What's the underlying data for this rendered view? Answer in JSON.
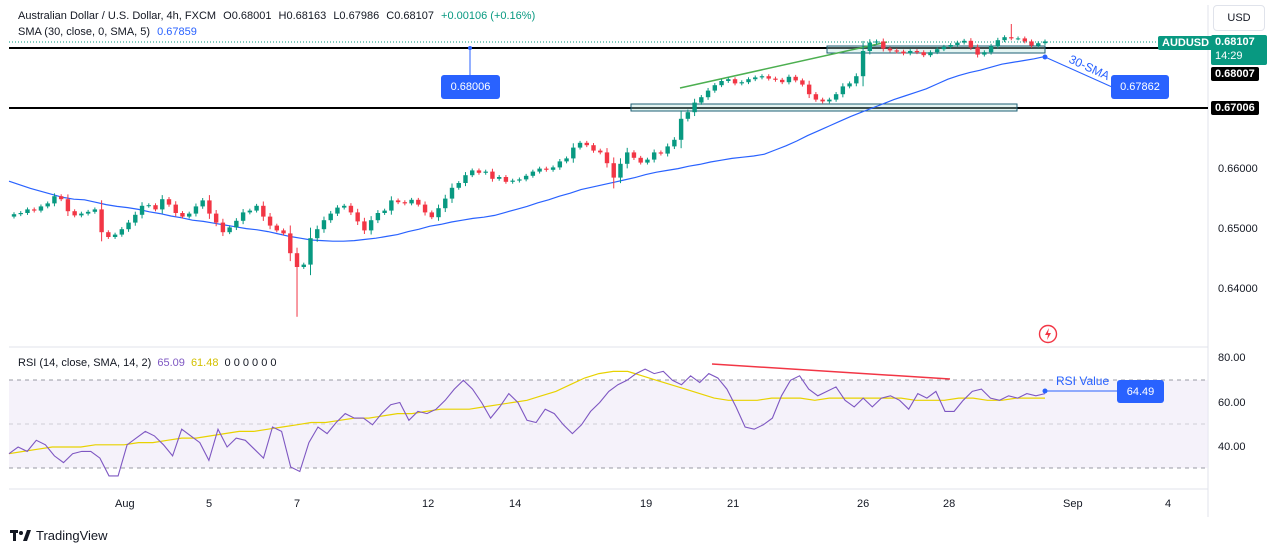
{
  "header": {
    "symbol_line": "Australian Dollar / U.S. Dollar, 4h, FXCM",
    "ohlc": {
      "o": "O0.68001",
      "h": "H0.68163",
      "l": "L0.67986",
      "c": "C0.68107",
      "change": "+0.00106 (+0.16%)"
    },
    "sma_label": "SMA (30, close, 0, SMA, 5)",
    "sma_value": "0.67859",
    "currency": "USD"
  },
  "price_axis": {
    "ticks": [
      "0.66000",
      "0.65000",
      "0.64000"
    ],
    "tags": {
      "symbol": "AUDUSD",
      "last_price": "0.68107",
      "countdown": "14:29",
      "level_high": "0.68007",
      "level_low": "0.67006"
    }
  },
  "callouts": {
    "level_value": "0.68006",
    "sma_value": "0.67862",
    "sma_text": "30-SMA",
    "rsi_text": "RSI Value",
    "rsi_value": "64.49"
  },
  "rsi": {
    "label": "RSI (14, close, SMA, 14, 2)",
    "value": "65.09",
    "ma_value": "61.48",
    "zeros": "0 0 0 0 0 0",
    "ticks": [
      "80.00",
      "60.00",
      "40.00"
    ]
  },
  "time_axis": [
    "Aug",
    "5",
    "7",
    "12",
    "14",
    "19",
    "21",
    "26",
    "28",
    "Sep",
    "4"
  ],
  "branding": {
    "logo": "TradingView"
  },
  "colors": {
    "up": "#089981",
    "down": "#f23645",
    "sma": "#2962ff",
    "rsi": "#7e57c2",
    "rsi_ma": "#e8d200"
  },
  "chart_data": [
    {
      "type": "candlestick",
      "title": "Australian Dollar / U.S. Dollar, 4h, FXCM",
      "ylim": [
        0.6335,
        0.6835
      ],
      "horizontal_levels": [
        0.68007,
        0.67006
      ],
      "series": [
        {
          "name": "price",
          "close": [
            0.6523,
            0.6525,
            0.6531,
            0.6529,
            0.6536,
            0.6541,
            0.6553,
            0.6548,
            0.6528,
            0.6521,
            0.6524,
            0.6527,
            0.6531,
            0.6493,
            0.6485,
            0.6489,
            0.6498,
            0.6509,
            0.6522,
            0.6537,
            0.6538,
            0.6531,
            0.6548,
            0.6539,
            0.6525,
            0.6519,
            0.6524,
            0.6536,
            0.6546,
            0.6524,
            0.6509,
            0.6493,
            0.6501,
            0.6512,
            0.6526,
            0.6529,
            0.6537,
            0.6519,
            0.6504,
            0.6496,
            0.6491,
            0.6458,
            0.6435,
            0.6439,
            0.6483,
            0.6498,
            0.6513,
            0.6524,
            0.6534,
            0.6537,
            0.6526,
            0.6511,
            0.6496,
            0.6513,
            0.6525,
            0.6529,
            0.6546,
            0.6543,
            0.6541,
            0.6547,
            0.6539,
            0.6526,
            0.6518,
            0.6533,
            0.6549,
            0.6567,
            0.6575,
            0.6588,
            0.6596,
            0.6592,
            0.6594,
            0.6582,
            0.6585,
            0.6577,
            0.6579,
            0.6581,
            0.6587,
            0.6594,
            0.6599,
            0.6597,
            0.6601,
            0.6611,
            0.6616,
            0.6634,
            0.6642,
            0.6638,
            0.6629,
            0.6626,
            0.6608,
            0.6584,
            0.6607,
            0.6626,
            0.6617,
            0.6609,
            0.6614,
            0.6626,
            0.6624,
            0.6636,
            0.6647,
            0.6682,
            0.6693,
            0.6709,
            0.6718,
            0.6729,
            0.6738,
            0.6745,
            0.6748,
            0.6741,
            0.6743,
            0.6748,
            0.6751,
            0.6753,
            0.6749,
            0.6747,
            0.6743,
            0.6752,
            0.6746,
            0.6739,
            0.6723,
            0.6714,
            0.6711,
            0.6714,
            0.6723,
            0.6736,
            0.6741,
            0.6753,
            0.6795,
            0.6809,
            0.6811,
            0.6799,
            0.6796,
            0.6794,
            0.6791,
            0.6795,
            0.6793,
            0.6788,
            0.6793,
            0.6798,
            0.6802,
            0.6805,
            0.6809,
            0.6812,
            0.6801,
            0.6789,
            0.6793,
            0.6803,
            0.6813,
            0.6818,
            0.6816,
            0.6816,
            0.6811,
            0.6804,
            0.6808,
            0.6811
          ]
        },
        {
          "name": "SMA (30)",
          "values": [
            0.6578,
            0.6572,
            0.6566,
            0.6561,
            0.6556,
            0.6551,
            0.6548,
            0.6547,
            0.6543,
            0.6539,
            0.6536,
            0.6534,
            0.6531,
            0.6527,
            0.6524,
            0.652,
            0.6517,
            0.6513,
            0.6511,
            0.6508,
            0.6505,
            0.6502,
            0.6499,
            0.6497,
            0.6494,
            0.649,
            0.6486,
            0.6483,
            0.648,
            0.6479,
            0.6478,
            0.6478,
            0.6479,
            0.6481,
            0.6483,
            0.6486,
            0.6489,
            0.6494,
            0.6498,
            0.6503,
            0.6506,
            0.651,
            0.6513,
            0.6516,
            0.6518,
            0.6521,
            0.6526,
            0.6531,
            0.6536,
            0.6542,
            0.6547,
            0.6553,
            0.6558,
            0.6564,
            0.6568,
            0.6572,
            0.6576,
            0.658,
            0.6584,
            0.6589,
            0.6593,
            0.6596,
            0.6599,
            0.6603,
            0.6606,
            0.661,
            0.6613,
            0.6616,
            0.6618,
            0.662,
            0.6623,
            0.663,
            0.6637,
            0.6645,
            0.6654,
            0.6662,
            0.667,
            0.6678,
            0.6686,
            0.6693,
            0.67,
            0.6707,
            0.6714,
            0.672,
            0.6726,
            0.6732,
            0.674,
            0.6748,
            0.6754,
            0.6759,
            0.6763,
            0.6768,
            0.6773,
            0.6776,
            0.6779,
            0.6782,
            0.6786
          ]
        }
      ]
    },
    {
      "type": "line",
      "title": "RSI (14, close, SMA, 14, 2)",
      "ylim": [
        22,
        84
      ],
      "bands": [
        70,
        50,
        30
      ],
      "series": [
        {
          "name": "RSI",
          "values": [
            37,
            40,
            38,
            43,
            41,
            36,
            33,
            37,
            38,
            38,
            35,
            27,
            27,
            41,
            44,
            47,
            45,
            41,
            36,
            48,
            45,
            42,
            34,
            48,
            40,
            44,
            43,
            39,
            35,
            49,
            47,
            31,
            29,
            42,
            49,
            46,
            51,
            55,
            53,
            53,
            50,
            55,
            59,
            60,
            52,
            56,
            55,
            57,
            61,
            66,
            70,
            66,
            60,
            53,
            58,
            64,
            60,
            52,
            51,
            57,
            55,
            50,
            46,
            50,
            56,
            60,
            65,
            68,
            70,
            73,
            75,
            73,
            74,
            70,
            68,
            72,
            69,
            73,
            71,
            66,
            58,
            49,
            48,
            50,
            53,
            63,
            70,
            72,
            66,
            63,
            65,
            67,
            61,
            58,
            62,
            58,
            62,
            63,
            61,
            57,
            64,
            62,
            65,
            56,
            56,
            61,
            65,
            66,
            62,
            61,
            63,
            62,
            64,
            63,
            64
          ]
        },
        {
          "name": "RSI-based MA",
          "values": [
            37,
            38,
            39,
            40,
            40,
            40,
            41,
            41,
            41,
            42,
            42,
            43,
            44,
            44,
            45,
            46,
            47,
            47,
            48,
            49,
            50,
            51,
            51,
            52,
            53,
            53,
            54,
            55,
            55,
            56,
            57,
            57,
            57,
            58,
            59,
            60,
            61,
            63,
            65,
            68,
            71,
            73,
            74,
            74,
            72,
            70,
            68,
            66,
            64,
            62,
            61,
            61,
            61,
            62,
            62,
            62,
            61,
            62,
            62,
            62,
            62,
            62,
            62,
            61,
            61,
            61,
            62,
            62,
            61,
            61,
            62,
            62,
            62
          ]
        }
      ]
    }
  ]
}
